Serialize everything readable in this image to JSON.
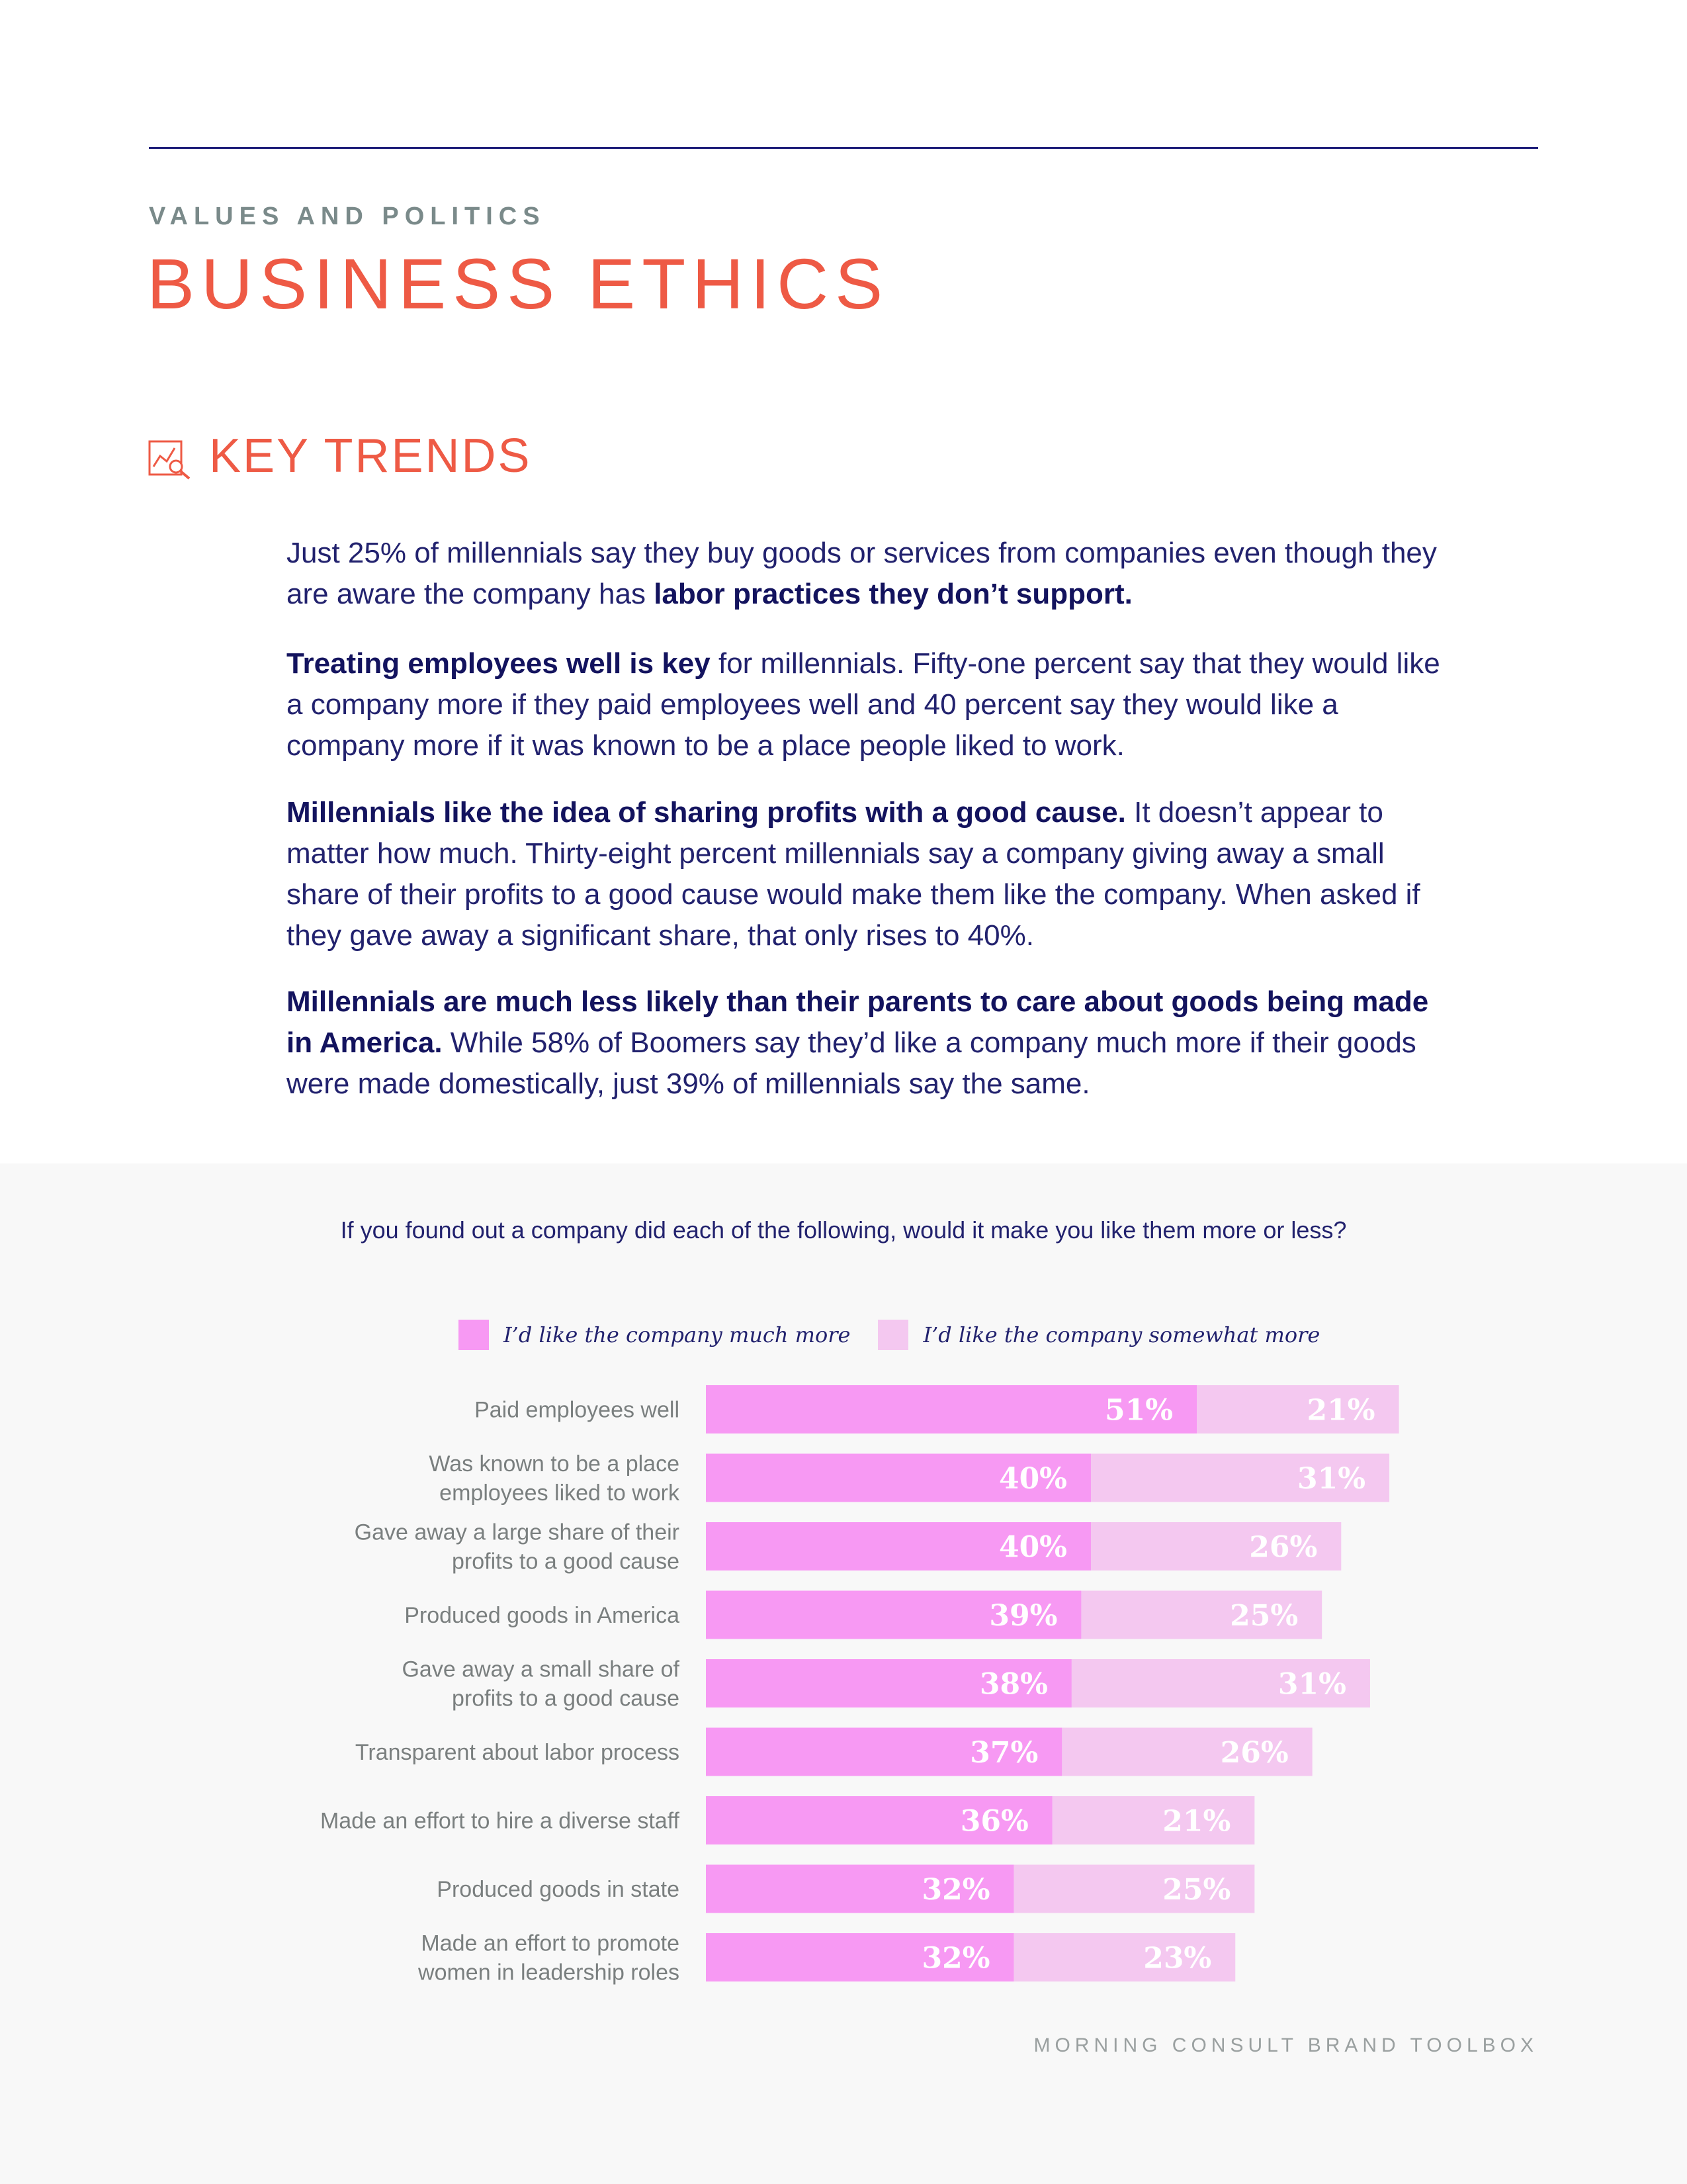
{
  "header": {
    "eyebrow": "VALUES AND POLITICS",
    "title": "BUSINESS ETHICS",
    "section_title": "KEY TRENDS",
    "section_icon": "trend-analysis-icon"
  },
  "paragraphs": [
    {
      "lead": "",
      "text": "Just 25% of millennials say they buy goods or services from companies even though they are aware the company has ",
      "tail_bold": "labor practices they don’t support."
    },
    {
      "lead": "Treating employees well is key",
      "text": " for millennials. Fifty-one percent say that they would like a company more if they paid employees well and 40 percent say they would like a company more if it was known to be a place people liked to work.",
      "tail_bold": ""
    },
    {
      "lead": "Millennials like the idea of sharing profits with a good cause.",
      "text": " It doesn’t appear to matter how much. Thirty-eight percent millennials say a company giving away a small share of their profits to a good cause would make them like the company. When asked if they gave away a significant share, that only rises to 40%.",
      "tail_bold": ""
    },
    {
      "lead": "Millennials are much less likely than their parents to care about goods being made in America.",
      "text": " While 58% of Boomers say they’d like a company much more if their goods were made domestically, just 39% of millennials say the same.",
      "tail_bold": ""
    }
  ],
  "question": "If you found out a company did each of the following, would it make you like them more or less?",
  "legend": {
    "much": "I’d like the company much more",
    "some": "I’d like the company somewhat more"
  },
  "colors": {
    "much": "#f799f3",
    "some": "#f4c8f0",
    "accent": "#ee5a45",
    "navy": "#22226e"
  },
  "chart_data": {
    "type": "bar",
    "orientation": "horizontal",
    "stacked": true,
    "categories": [
      [
        "Paid employees well"
      ],
      [
        "Was known to be a place",
        "employees liked to work"
      ],
      [
        "Gave away a large share of their",
        "profits to a good cause"
      ],
      [
        "Produced goods in America"
      ],
      [
        "Gave away a small share of",
        "profits to a good cause"
      ],
      [
        "Transparent about labor process"
      ],
      [
        "Made an effort to hire a diverse staff"
      ],
      [
        "Produced goods in state"
      ],
      [
        "Made an effort to promote",
        "women in leadership roles"
      ]
    ],
    "series": [
      {
        "name": "I’d like the company much more",
        "values": [
          51,
          40,
          40,
          39,
          38,
          37,
          36,
          32,
          32
        ]
      },
      {
        "name": "I’d like the company somewhat more",
        "values": [
          21,
          31,
          26,
          25,
          31,
          26,
          21,
          25,
          23
        ]
      }
    ],
    "value_format": "{v}%",
    "xlim": [
      0,
      100
    ],
    "legend_position": "top",
    "grid": false
  },
  "footer": "MORNING CONSULT BRAND TOOLBOX"
}
